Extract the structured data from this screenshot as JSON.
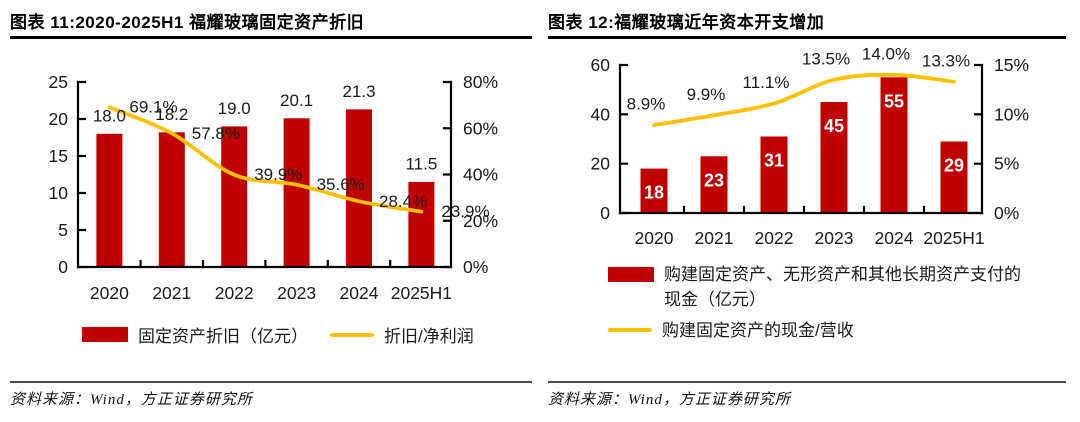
{
  "colors": {
    "bar_red": "#C00000",
    "line_yellow": "#FFC000",
    "axis_black": "#000000",
    "label_black": "#1A1A1A",
    "bar_label_white": "#FFFFFF",
    "source_rule_gray": "#4D4D4D"
  },
  "charts": [
    {
      "title": "图表 11:2020-2025H1 福耀玻璃固定资产折旧",
      "source": "资料来源：Wind，方正证券研究所",
      "chart_data": {
        "type": "bar+line combo",
        "categories": [
          "2020",
          "2021",
          "2022",
          "2023",
          "2024",
          "2025H1"
        ],
        "series": [
          {
            "name": "固定资产折旧（亿元）",
            "type": "bar",
            "y_axis": "left",
            "color": "#C00000",
            "values": [
              18.0,
              18.2,
              19.0,
              20.1,
              21.3,
              11.5
            ],
            "labels": [
              "18.0",
              "18.2",
              "19.0",
              "20.1",
              "21.3",
              "11.5"
            ],
            "label_position": "above",
            "label_color": "#1A1A1A"
          },
          {
            "name": "折旧/净利润",
            "type": "line",
            "y_axis": "right",
            "color": "#FFC000",
            "values": [
              69.1,
              57.8,
              39.9,
              35.6,
              28.4,
              23.9
            ],
            "labels": [
              "69.1%",
              "57.8%",
              "39.9%",
              "35.6%",
              "28.4%",
              "23.9%"
            ],
            "label_position": "right",
            "label_color": "#1A1A1A"
          }
        ],
        "left_axis": {
          "min": 0,
          "max": 25,
          "tick_labels": [
            "0",
            "5",
            "10",
            "15",
            "20",
            "25"
          ]
        },
        "right_axis": {
          "min": 0,
          "max": 80,
          "tick_labels": [
            "0%",
            "20%",
            "40%",
            "60%",
            "80%"
          ]
        },
        "grid": false,
        "legend_position": "bottom"
      }
    },
    {
      "title": "图表 12:福耀玻璃近年资本开支增加",
      "source": "资料来源：Wind，方正证券研究所",
      "chart_data": {
        "type": "bar+line combo",
        "categories": [
          "2020",
          "2021",
          "2022",
          "2023",
          "2024",
          "2025H1"
        ],
        "series": [
          {
            "name": "购建固定资产、无形资产和其他长期资产支付的现金（亿元）",
            "type": "bar",
            "y_axis": "left",
            "color": "#C00000",
            "values": [
              18,
              23,
              31,
              45,
              55,
              29
            ],
            "labels": [
              "18",
              "23",
              "31",
              "45",
              "55",
              "29"
            ],
            "label_position": "inside",
            "label_color": "#FFFFFF"
          },
          {
            "name": "购建固定资产的现金/营收",
            "type": "line",
            "y_axis": "right",
            "color": "#FFC000",
            "values": [
              8.9,
              9.9,
              11.1,
              13.5,
              14.0,
              13.3
            ],
            "labels": [
              "8.9%",
              "9.9%",
              "11.1%",
              "13.5%",
              "14.0%",
              "13.3%"
            ],
            "label_position": "above",
            "label_color": "#1A1A1A"
          }
        ],
        "left_axis": {
          "min": 0,
          "max": 60,
          "tick_labels": [
            "0",
            "20",
            "40",
            "60"
          ]
        },
        "right_axis": {
          "min": 0,
          "max": 15,
          "tick_labels": [
            "0%",
            "5%",
            "10%",
            "15%"
          ]
        },
        "grid": false,
        "legend_position": "bottom"
      }
    }
  ]
}
